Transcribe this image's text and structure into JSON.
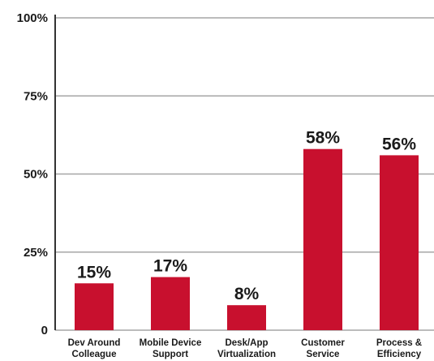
{
  "chart_data": {
    "type": "bar",
    "categories": [
      [
        "Dev Around",
        "Colleague"
      ],
      [
        "Mobile Device",
        "Support"
      ],
      [
        "Desk/App",
        "Virtualization"
      ],
      [
        "Customer",
        "Service"
      ],
      [
        "Process &",
        "Efficiency"
      ]
    ],
    "values": [
      15,
      17,
      8,
      58,
      56
    ],
    "data_labels": [
      "15%",
      "17%",
      "8%",
      "58%",
      "56%"
    ],
    "y_ticks": [
      {
        "value": 0,
        "label": "0"
      },
      {
        "value": 25,
        "label": "25%"
      },
      {
        "value": 50,
        "label": "50%"
      },
      {
        "value": 75,
        "label": "75%"
      },
      {
        "value": 100,
        "label": "100%"
      }
    ],
    "ylim": [
      0,
      100
    ],
    "grid": true,
    "title": "",
    "xlabel": "",
    "ylabel": "",
    "colors": {
      "bar": "#c8102e",
      "grid": "#a6a6a6",
      "axis": "#333333",
      "text": "#1a1a1a"
    }
  }
}
